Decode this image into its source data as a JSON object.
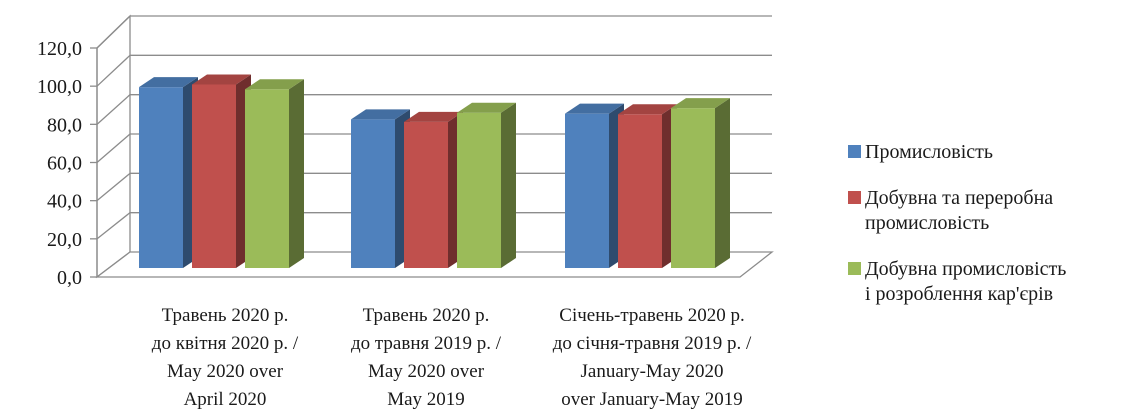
{
  "chart_data": {
    "type": "bar",
    "categories": [
      "Травень 2020 р.\nдо квітня 2020 р. /\nMay 2020 over\nApril 2020",
      "Травень 2020 р.\nдо травня 2019 р. /\nMay 2020 over\nMay 2019",
      "Січень-травень 2020 р.\nдо січня-травня 2019 р. /\nJanuary-May 2020\nover January-May 2019"
    ],
    "series": [
      {
        "name": "Промисловість",
        "values": [
          104.2,
          87.3,
          90.3
        ],
        "color": "#4f81bd"
      },
      {
        "name": "Добувна та переробна\nпромисловість",
        "values": [
          105.6,
          86.0,
          90.0
        ],
        "color": "#c0504d"
      },
      {
        "name": "Добувна промисловість\nі розроблення кар'єрів",
        "values": [
          103.1,
          90.8,
          93.2
        ],
        "color": "#9bbb59"
      }
    ],
    "yticks": [
      "0,0",
      "20,0",
      "40,0",
      "60,0",
      "80,0",
      "100,0",
      "120,0"
    ],
    "ylim": [
      0,
      120
    ],
    "grid": true,
    "legend_position": "right",
    "title": "",
    "xlabel": "",
    "ylabel": ""
  }
}
